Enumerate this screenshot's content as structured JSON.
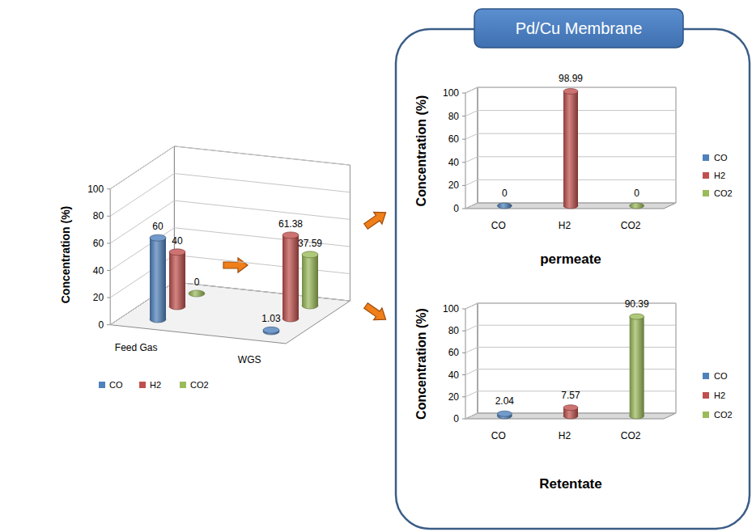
{
  "chart_data": [
    {
      "type": "bar",
      "categories": [
        "Feed Gas",
        "WGS"
      ],
      "series": [
        {
          "name": "CO",
          "color": "#4f81bd",
          "values": [
            60,
            1.03
          ]
        },
        {
          "name": "H2",
          "color": "#c0504d",
          "values": [
            40,
            61.38
          ]
        },
        {
          "name": "CO2",
          "color": "#9bbb59",
          "values": [
            0,
            37.59
          ]
        }
      ],
      "y_label": "Concentration (%)",
      "ylim": [
        0,
        100
      ],
      "yticks": [
        0,
        20,
        40,
        60,
        80,
        100
      ],
      "grid": true,
      "legend": "bottom",
      "data_labels": true
    },
    {
      "type": "bar",
      "title": "permeate",
      "categories": [
        "CO",
        "H2",
        "CO2"
      ],
      "values": [
        0,
        98.99,
        0
      ],
      "colors": [
        "#4f81bd",
        "#c0504d",
        "#9bbb59"
      ],
      "y_label": "Concentration (%)",
      "ylim": [
        0,
        100
      ],
      "yticks": [
        0,
        20,
        40,
        60,
        80,
        100
      ],
      "grid": true,
      "legend": "right",
      "data_labels": true
    },
    {
      "type": "bar",
      "title": "Retentate",
      "categories": [
        "CO",
        "H2",
        "CO2"
      ],
      "values": [
        2.04,
        7.57,
        90.39
      ],
      "colors": [
        "#4f81bd",
        "#c0504d",
        "#9bbb59"
      ],
      "y_label": "Concentration (%)",
      "ylim": [
        0,
        100
      ],
      "yticks": [
        0,
        20,
        40,
        60,
        80,
        100
      ],
      "grid": true,
      "legend": "right",
      "data_labels": true
    }
  ],
  "panel": {
    "title": "Pd/Cu Membrane"
  }
}
